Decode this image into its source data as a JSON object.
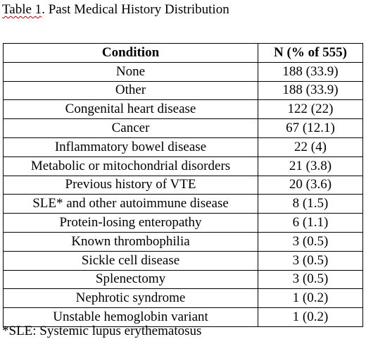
{
  "caption": {
    "prefix": "Table 1",
    "rest": ". Past Medical History Distribution"
  },
  "table": {
    "headers": [
      "Condition",
      "N (% of 555)"
    ],
    "rows": [
      {
        "condition": "None",
        "n": "188 (33.9)"
      },
      {
        "condition": "Other",
        "n": "188 (33.9)"
      },
      {
        "condition": "Congenital heart disease",
        "n": "122 (22)"
      },
      {
        "condition": "Cancer",
        "n": "67 (12.1)"
      },
      {
        "condition": "Inflammatory bowel disease",
        "n": "22 (4)"
      },
      {
        "condition": "Metabolic or mitochondrial disorders",
        "n": "21 (3.8)"
      },
      {
        "condition": "Previous history of VTE",
        "n": "20 (3.6)"
      },
      {
        "condition": "SLE* and other autoimmune disease",
        "n": "8 (1.5)"
      },
      {
        "condition": "Protein-losing enteropathy",
        "n": "6 (1.1)"
      },
      {
        "condition": "Known thrombophilia",
        "n": "3 (0.5)"
      },
      {
        "condition": "Sickle cell disease",
        "n": "3 (0.5)"
      },
      {
        "condition": "Splenectomy",
        "n": "3 (0.5)"
      },
      {
        "condition": "Nephrotic syndrome",
        "n": "1 (0.2)"
      },
      {
        "condition": "Unstable hemoglobin variant",
        "n": "1 (0.2)"
      }
    ]
  },
  "footnote": "*SLE: Systemic lupus erythematosus",
  "colors": {
    "text": "#000000",
    "border": "#000000",
    "spellcheck_underline": "#c00000"
  }
}
